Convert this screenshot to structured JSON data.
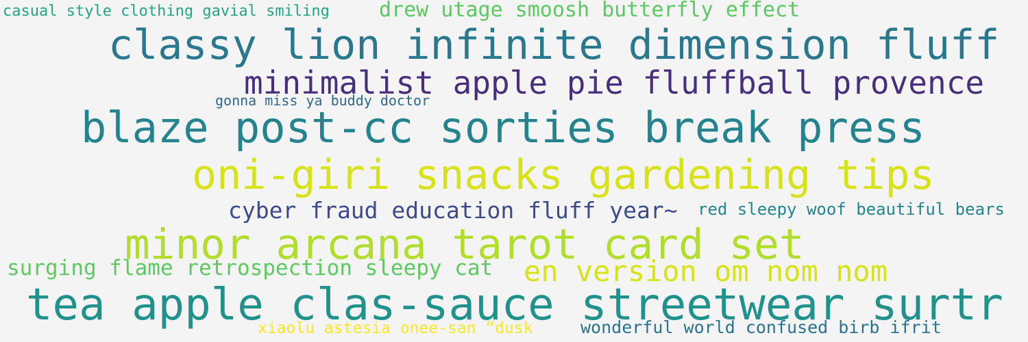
{
  "phrases": [
    {
      "text": "casual style clothing gavial smiling",
      "color": "#26a584"
    },
    {
      "text": "drew utage smoosh butterfly effect",
      "color": "#5cc862"
    },
    {
      "text": "classy lion infinite dimension fluff",
      "color": "#2a788e"
    },
    {
      "text": "minimalist apple pie fluffball provence",
      "color": "#472f7d"
    },
    {
      "text": "gonna miss ya buddy doctor",
      "color": "#31678e"
    },
    {
      "text": "blaze post-cc sorties break press",
      "color": "#25838e"
    },
    {
      "text": "oni-giri snacks gardening tips",
      "color": "#d7e219"
    },
    {
      "text": "cyber fraud education fluff year~",
      "color": "#3e4a89"
    },
    {
      "text": "red sleepy woof beautiful bears",
      "color": "#25858e"
    },
    {
      "text": "minor arcana tarot card set",
      "color": "#b2dd2d"
    },
    {
      "text": "surging flame retrospection sleepy cat",
      "color": "#5ec962"
    },
    {
      "text": "en version om nom nom",
      "color": "#d8e219"
    },
    {
      "text": "tea apple clas-sauce streetwear surtr",
      "color": "#21918c"
    },
    {
      "text": "xiaolu astesia onee-san “dusk",
      "color": "#fde725"
    },
    {
      "text": "wonderful world confused birb ifrit",
      "color": "#2c728e"
    }
  ]
}
